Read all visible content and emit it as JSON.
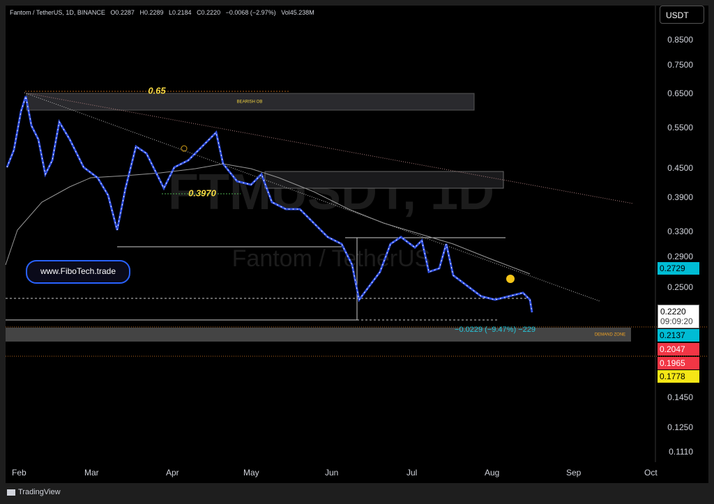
{
  "header": {
    "symbol": "Fantom / TetherUS, 1D, BINANCE",
    "open": "O0.2287",
    "high": "H0.2289",
    "low": "L0.2184",
    "close": "C0.2220",
    "change": "−0.0068 (−2.97%)",
    "volume": "Vol45.238M"
  },
  "currency": "USDT",
  "price_axis": [
    "0.8500",
    "0.7500",
    "0.6500",
    "0.5500",
    "0.4500",
    "0.3900",
    "0.3300",
    "0.2900",
    "0.2500",
    "0.1450",
    "0.1250",
    "0.1110"
  ],
  "badges": {
    "ma": "0.2729",
    "last": "0.2220",
    "countdown": "09:09:20",
    "level1": "0.2137",
    "level2": "0.2047",
    "level3": "0.1965",
    "level4": "0.1778"
  },
  "time_axis": [
    "Feb",
    "Mar",
    "Apr",
    "May",
    "Jun",
    "Jul",
    "Aug",
    "Sep",
    "Oct"
  ],
  "annotations": {
    "fib": "0.65",
    "bearish_ob": "BEARISH OB",
    "level": "0.3970",
    "website": "www.FiboTech.trade",
    "measure": "−0.0229 (−9.47%) −229",
    "demand_zone": "DEMAND ZONE"
  },
  "watermark": {
    "symbol": "FTMUSDT, 1D",
    "name": "Fantom / TetherUS"
  },
  "footer": "TradingView"
}
